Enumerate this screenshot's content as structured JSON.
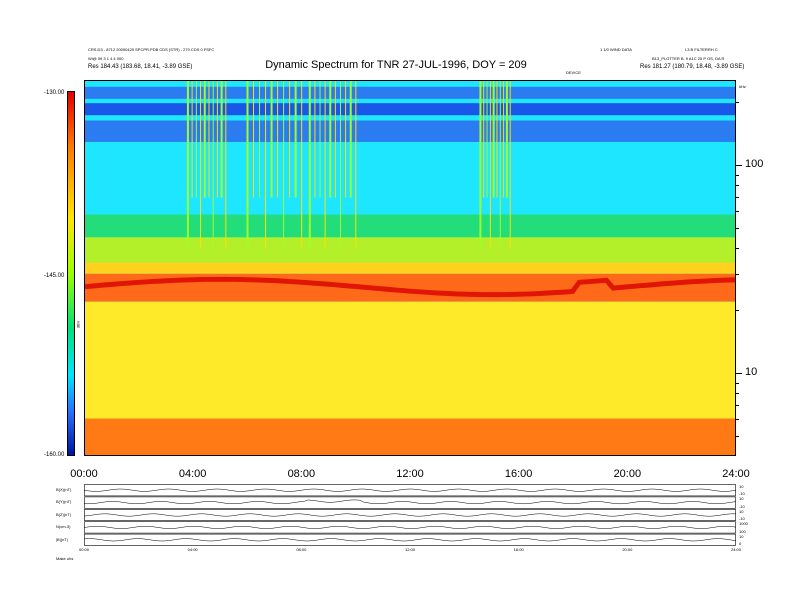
{
  "header": {
    "title": "Dynamic Spectrum for TNR 27-JUL-1996, DOY = 209",
    "left_line1": "CRS.D3 - 8712 20090429 SPCPR.PDB CDS (STR) - 270 CDS 0 FSFC",
    "left_line2": "Wi@ 09 3 1 4 4 000",
    "left_line3": "Res   184.43 (183.68, 18.41, -3.89 GSE)",
    "center_right": "1 1/0 WIND DATA",
    "right_line1": "L3 B FILTERRH C",
    "right_line2": "B13_PLOTTER B. 9 A1C 25 P OS, DA R",
    "right_line3": "Res   181.27 (180.79, 18.48, -3.89 GSE)",
    "mid_tag": "DEVICE",
    "units_tag": "kHz"
  },
  "colorbar": {
    "top_label": "-130.00",
    "mid_label": "-145.00",
    "bottom_label": "-160.00",
    "units": "dBV"
  },
  "bottom_label": "Make   uhs",
  "chart_data": [
    {
      "type": "heatmap",
      "title": "Dynamic Spectrum for TNR 27-JUL-1996, DOY = 209",
      "x_ticks": [
        "00:00",
        "04:00",
        "08:00",
        "12:00",
        "16:00",
        "20:00",
        "24:00"
      ],
      "x_range": [
        0,
        24
      ],
      "y_scale": "log",
      "y_units": "kHz",
      "y_range": [
        4,
        256
      ],
      "y_tick_labels": [
        "100",
        "10"
      ],
      "y_tick_values": [
        100,
        10
      ],
      "z_range": [
        -160,
        -130
      ],
      "z_ticks": [
        "-130.00",
        "-145.00",
        "-160.00"
      ],
      "bands": [
        {
          "y_top": 256,
          "y_bottom": 52,
          "level": -133,
          "color": "#1ee6ff"
        },
        {
          "y_top": 240,
          "y_bottom": 210,
          "level": -131,
          "color": "#2a7cf0"
        },
        {
          "y_top": 200,
          "y_bottom": 175,
          "level": -131,
          "color": "#1a56e8"
        },
        {
          "y_top": 165,
          "y_bottom": 130,
          "level": -131,
          "color": "#2a7cf0"
        },
        {
          "y_top": 58,
          "y_bottom": 45,
          "level": -140,
          "color": "#22dd7a"
        },
        {
          "y_top": 45,
          "y_bottom": 34,
          "level": -142,
          "color": "#b4f02a"
        },
        {
          "y_top": 34,
          "y_bottom": 30,
          "level": -144,
          "color": "#ffd21e"
        },
        {
          "y_top": 30,
          "y_bottom": 22,
          "level": -147,
          "color": "#ff6a1a"
        },
        {
          "y_top": 22,
          "y_bottom": 6,
          "level": -152,
          "color": "#ffea2a"
        },
        {
          "y_top": 6,
          "y_bottom": 4,
          "level": -156,
          "color": "#ff7a14"
        }
      ],
      "bursts": [
        {
          "x_start": 3.8,
          "x_end": 5.2
        },
        {
          "x_start": 6.0,
          "x_end": 8.0
        },
        {
          "x_start": 8.3,
          "x_end": 10.0
        },
        {
          "x_start": 14.6,
          "x_end": 15.7
        }
      ]
    },
    {
      "type": "line",
      "title": "",
      "panels": [
        {
          "left_label": "B(X)(nT)",
          "right_labels": [
            "10",
            "-10"
          ]
        },
        {
          "left_label": "B(Y)(nT)",
          "right_labels": [
            "10",
            "-10"
          ]
        },
        {
          "left_label": "B(Z)(nT)",
          "right_labels": [
            "10",
            "-10"
          ]
        },
        {
          "left_label": "N(cm-3)",
          "right_labels": [
            "1000",
            "100"
          ]
        },
        {
          "left_label": "|B|(nT)",
          "right_labels": [
            "10",
            "0"
          ]
        }
      ],
      "x_ticks": [
        "00:00",
        "04:00",
        "08:00",
        "12:00",
        "16:00",
        "20:00",
        "24:00"
      ]
    }
  ]
}
